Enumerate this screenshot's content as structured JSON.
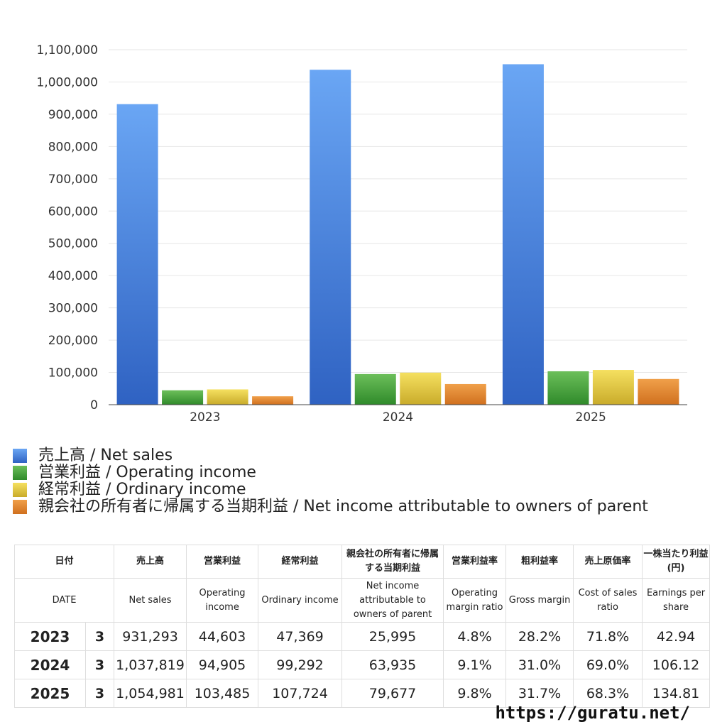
{
  "chart_data": {
    "type": "bar",
    "categories": [
      "2023",
      "2024",
      "2025"
    ],
    "series": [
      {
        "name": "売上高 / Net sales",
        "values": [
          931293,
          1037819,
          1054981
        ],
        "color_top": "#6aa6f4",
        "color_bottom": "#2f62c2"
      },
      {
        "name": "営業利益 / Operating income",
        "values": [
          44603,
          94905,
          103485
        ],
        "color_top": "#6cbf5a",
        "color_bottom": "#2f8a2a"
      },
      {
        "name": "経常利益 / Ordinary income",
        "values": [
          47369,
          99292,
          107724
        ],
        "color_top": "#f5e060",
        "color_bottom": "#c9ab2a"
      },
      {
        "name": "親会社の所有者に帰属する当期利益 / Net income attributable to owners of parent",
        "values": [
          25995,
          63935,
          79677
        ],
        "color_top": "#f0a04a",
        "color_bottom": "#d0701e"
      }
    ],
    "ylim": [
      0,
      1100000
    ],
    "yticks": [
      "0",
      "100,000",
      "200,000",
      "300,000",
      "400,000",
      "500,000",
      "600,000",
      "700,000",
      "800,000",
      "900,000",
      "1,000,000",
      "1,100,000"
    ],
    "grid": true,
    "legend_position": "bottom-left"
  },
  "table": {
    "headers_jp": [
      "日付",
      "",
      "売上高",
      "営業利益",
      "経常利益",
      "親会社の所有者に帰属する当期利益",
      "営業利益率",
      "粗利益率",
      "売上原価率",
      "一株当たり利益(円)"
    ],
    "headers_en": [
      "DATE",
      "",
      "Net sales",
      "Operating income",
      "Ordinary income",
      "Net income attributable to owners of parent",
      "Operating margin ratio",
      "Gross margin",
      "Cost of sales ratio",
      "Earnings per share"
    ],
    "rows": [
      [
        "2023",
        "3",
        "931,293",
        "44,603",
        "47,369",
        "25,995",
        "4.8%",
        "28.2%",
        "71.8%",
        "42.94"
      ],
      [
        "2024",
        "3",
        "1,037,819",
        "94,905",
        "99,292",
        "63,935",
        "9.1%",
        "31.0%",
        "69.0%",
        "106.12"
      ],
      [
        "2025",
        "3",
        "1,054,981",
        "103,485",
        "107,724",
        "79,677",
        "9.8%",
        "31.7%",
        "68.3%",
        "134.81"
      ]
    ]
  },
  "source": "https://guratu.net/"
}
